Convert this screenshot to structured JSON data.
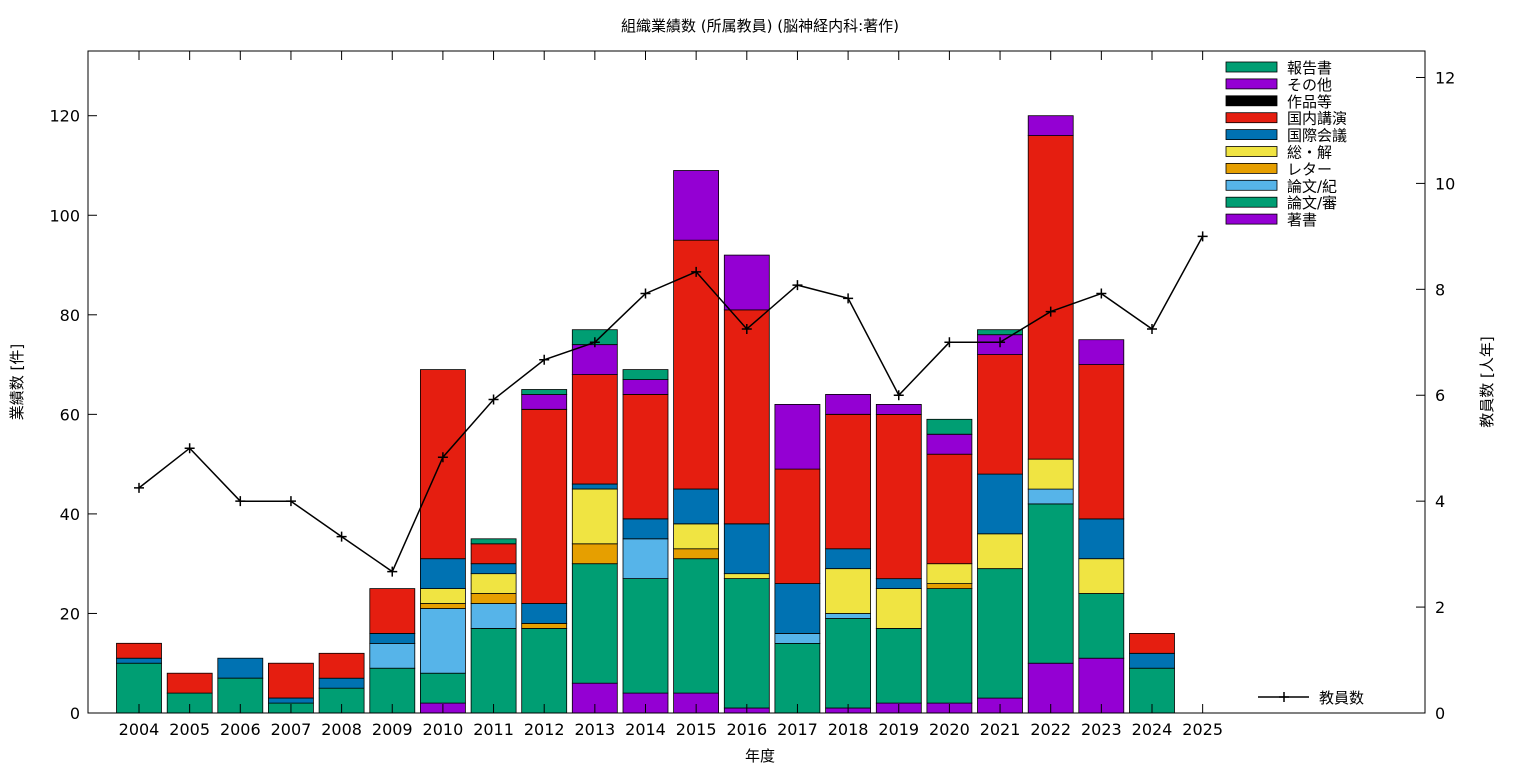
{
  "chart_data": {
    "type": "bar",
    "stacked": true,
    "title": "組織業績数 (所属教員) (脳神経内科:著作)",
    "xlabel": "年度",
    "ylabel": "業績数 [件]",
    "y2label": "教員数 [人年]",
    "ylim": [
      0,
      133
    ],
    "y2lim": [
      0,
      12.5
    ],
    "yticks": [
      0,
      20,
      40,
      60,
      80,
      100,
      120
    ],
    "y2ticks": [
      0,
      2,
      4,
      6,
      8,
      10,
      12
    ],
    "grid": false,
    "legend_position": "top-right",
    "categories": [
      "2004",
      "2005",
      "2006",
      "2007",
      "2008",
      "2009",
      "2010",
      "2011",
      "2012",
      "2013",
      "2014",
      "2015",
      "2016",
      "2017",
      "2018",
      "2019",
      "2020",
      "2021",
      "2022",
      "2023",
      "2024",
      "2025"
    ],
    "series": [
      {
        "name": "著書",
        "color": "#9400d3",
        "values": [
          0,
          0,
          0,
          0,
          0,
          0,
          2,
          0,
          0,
          6,
          4,
          4,
          1,
          0,
          1,
          2,
          2,
          3,
          10,
          11,
          0,
          0
        ]
      },
      {
        "name": "論文/審",
        "color": "#009e73",
        "values": [
          10,
          4,
          7,
          2,
          5,
          9,
          6,
          17,
          17,
          24,
          23,
          27,
          26,
          14,
          18,
          15,
          23,
          26,
          32,
          13,
          9,
          0
        ]
      },
      {
        "name": "論文/紀",
        "color": "#56b4e9",
        "values": [
          0,
          0,
          0,
          0,
          0,
          5,
          13,
          5,
          0,
          0,
          8,
          0,
          0,
          2,
          1,
          0,
          0,
          0,
          3,
          0,
          0,
          0
        ]
      },
      {
        "name": "レター",
        "color": "#e69f00",
        "values": [
          0,
          0,
          0,
          0,
          0,
          0,
          1,
          2,
          1,
          4,
          0,
          2,
          0,
          0,
          0,
          0,
          1,
          0,
          0,
          0,
          0,
          0
        ]
      },
      {
        "name": "総・解",
        "color": "#f0e442",
        "values": [
          0,
          0,
          0,
          0,
          0,
          0,
          3,
          4,
          0,
          11,
          0,
          5,
          1,
          0,
          9,
          8,
          4,
          7,
          6,
          7,
          0,
          0
        ]
      },
      {
        "name": "国際会議",
        "color": "#0072b2",
        "values": [
          1,
          0,
          4,
          1,
          2,
          2,
          6,
          2,
          4,
          1,
          4,
          7,
          10,
          10,
          4,
          2,
          0,
          12,
          0,
          8,
          3,
          0
        ]
      },
      {
        "name": "国内講演",
        "color": "#e51e10",
        "values": [
          3,
          4,
          0,
          7,
          5,
          9,
          38,
          4,
          39,
          22,
          25,
          50,
          43,
          23,
          27,
          33,
          22,
          24,
          65,
          31,
          4,
          0
        ]
      },
      {
        "name": "作品等",
        "color": "#000000",
        "values": [
          0,
          0,
          0,
          0,
          0,
          0,
          0,
          0,
          0,
          0,
          0,
          0,
          0,
          0,
          0,
          0,
          0,
          0,
          0,
          0,
          0,
          0
        ]
      },
      {
        "name": "その他",
        "color": "#9400d3",
        "values": [
          0,
          0,
          0,
          0,
          0,
          0,
          0,
          0,
          3,
          6,
          3,
          14,
          11,
          13,
          4,
          2,
          4,
          4,
          4,
          5,
          0,
          0
        ]
      },
      {
        "name": "報告書",
        "color": "#009e73",
        "values": [
          0,
          0,
          0,
          0,
          0,
          0,
          0,
          1,
          1,
          3,
          2,
          0,
          0,
          0,
          0,
          0,
          3,
          1,
          0,
          0,
          0,
          0
        ]
      }
    ],
    "legend_order": [
      "報告書",
      "その他",
      "作品等",
      "国内講演",
      "国際会議",
      "総・解",
      "レター",
      "論文/紀",
      "論文/審",
      "著書"
    ],
    "line_series": {
      "name": "教員数",
      "axis": "right",
      "color": "#000000",
      "values": [
        4.25,
        5.0,
        4.0,
        4.0,
        3.33,
        2.67,
        4.83,
        5.92,
        6.67,
        7.0,
        7.92,
        8.33,
        7.25,
        8.08,
        7.83,
        6.0,
        7.0,
        7.0,
        7.58,
        7.92,
        7.25,
        9.0
      ]
    }
  }
}
